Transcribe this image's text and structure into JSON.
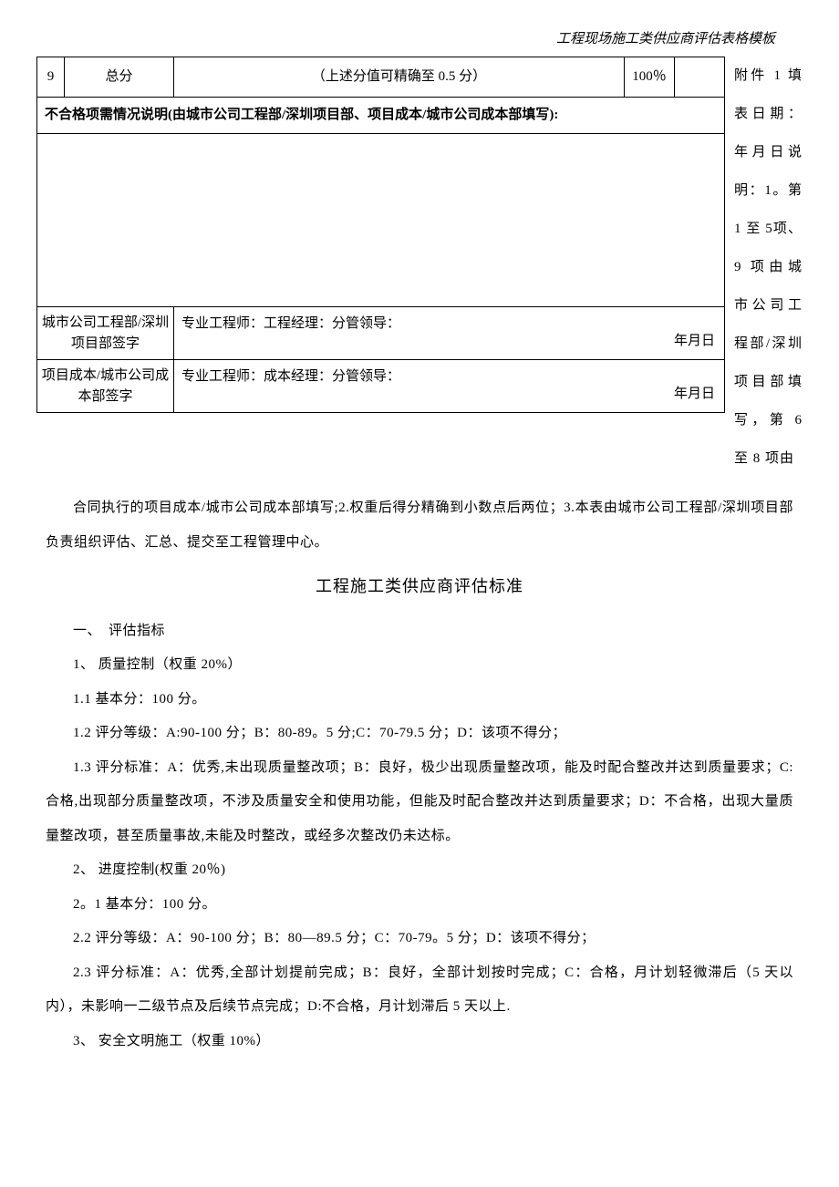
{
  "header": {
    "title": "工程现场施工类供应商评估表格模板"
  },
  "table": {
    "row9": {
      "num": "9",
      "name": "总分",
      "desc": "（上述分值可精确至 0.5 分）",
      "pct": "100％",
      "score": ""
    },
    "explain_heading": "不合格项需情况说明(由城市公司工程部/深圳项目部、项目成本/城市公司成本部填写):",
    "sign1": {
      "label": "城市公司工程部/深圳项目部签字",
      "content": "专业工程师：工程经理：分管领导：",
      "date": "年月日"
    },
    "sign2": {
      "label": "项目成本/城市公司成本部签字",
      "content": "专业工程师：成本经理：分管领导：",
      "date": "年月日"
    }
  },
  "side_note": "附件 1 填表日期：年月日说明：1。第 1 至 5项、9 项由城市公司工程部/深圳项目部填写，第 6至 8 项由",
  "body": {
    "p1": "合同执行的项目成本/城市公司成本部填写;2.权重后得分精确到小数点后两位；3.本表由城市公司工程部/深圳项目部负责组织评估、汇总、提交至工程管理中心。",
    "section_title": "工程施工类供应商评估标准",
    "s1": "一、　评估指标",
    "s1_1": "1、 质量控制（权重 20%）",
    "s1_1_1": "1.1 基本分：100 分。",
    "s1_1_2": "1.2 评分等级：A:90-100 分；B：80-89。5 分;C：70-79.5 分；D：该项不得分；",
    "s1_1_3": "1.3 评分标准：A：优秀,未出现质量整改项；B：良好，极少出现质量整改项，能及时配合整改并达到质量要求；C:合格,出现部分质量整改项，不涉及质量安全和使用功能，但能及时配合整改并达到质量要求；D：不合格，出现大量质量整改项，甚至质量事故,未能及时整改，或经多次整改仍未达标。",
    "s2": "2、 进度控制(权重 20％)",
    "s2_1": "2。1 基本分：100 分。",
    "s2_2": "2.2 评分等级：A：90-100 分；B：80—89.5 分；C：70-79。5 分；D：该项不得分；",
    "s2_3": "2.3 评分标准：A：优秀,全部计划提前完成；B：良好，全部计划按时完成；C：合格，月计划轻微滞后（5 天以内），未影响一二级节点及后续节点完成；D:不合格，月计划滞后 5 天以上.",
    "s3": "3、 安全文明施工（权重 10%）"
  }
}
